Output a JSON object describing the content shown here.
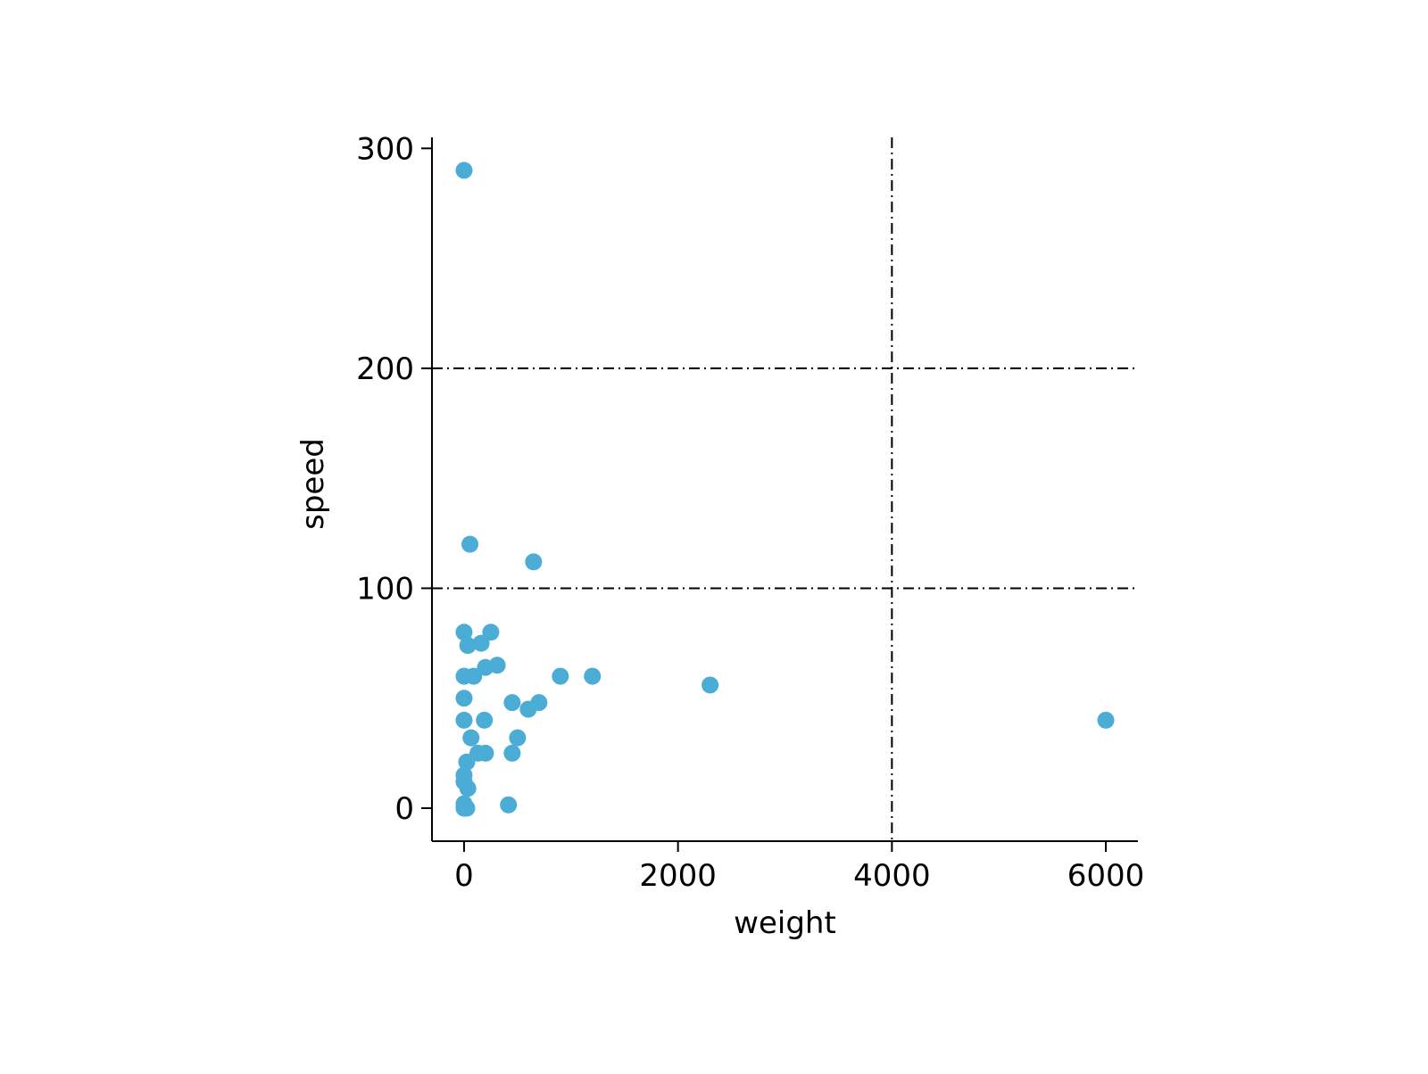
{
  "chart_data": {
    "type": "scatter",
    "title": "",
    "xlabel": "weight",
    "ylabel": "speed",
    "xlim": [
      -300,
      6300
    ],
    "ylim": [
      -15,
      305
    ],
    "x_ticks": [
      0,
      2000,
      4000,
      6000
    ],
    "x_tick_labels": [
      "0",
      "2000",
      "4000",
      "6000"
    ],
    "y_ticks": [
      0,
      100,
      200,
      300
    ],
    "y_tick_labels": [
      "0",
      "100",
      "200",
      "300"
    ],
    "grid": {
      "style": "dash-dot",
      "color": "#000000",
      "vertical_at": [
        4000
      ],
      "horizontal_at": [
        100,
        200
      ]
    },
    "marker_color": "#4BACD6",
    "points": [
      {
        "x": 0,
        "y": 290
      },
      {
        "x": 55,
        "y": 120
      },
      {
        "x": 650,
        "y": 112
      },
      {
        "x": 0,
        "y": 80
      },
      {
        "x": 250,
        "y": 80
      },
      {
        "x": 35,
        "y": 74
      },
      {
        "x": 160,
        "y": 75
      },
      {
        "x": 200,
        "y": 64
      },
      {
        "x": 310,
        "y": 65
      },
      {
        "x": 0,
        "y": 60
      },
      {
        "x": 90,
        "y": 60
      },
      {
        "x": 900,
        "y": 60
      },
      {
        "x": 1200,
        "y": 60
      },
      {
        "x": 2300,
        "y": 56
      },
      {
        "x": 0,
        "y": 50
      },
      {
        "x": 450,
        "y": 48
      },
      {
        "x": 700,
        "y": 48
      },
      {
        "x": 600,
        "y": 45
      },
      {
        "x": 0,
        "y": 40
      },
      {
        "x": 190,
        "y": 40
      },
      {
        "x": 6000,
        "y": 40
      },
      {
        "x": 65,
        "y": 32
      },
      {
        "x": 500,
        "y": 32
      },
      {
        "x": 130,
        "y": 25
      },
      {
        "x": 200,
        "y": 25
      },
      {
        "x": 450,
        "y": 25
      },
      {
        "x": 25,
        "y": 21
      },
      {
        "x": 0,
        "y": 15
      },
      {
        "x": 0,
        "y": 12
      },
      {
        "x": 35,
        "y": 9
      },
      {
        "x": 0,
        "y": 2
      },
      {
        "x": 415,
        "y": 1.5
      },
      {
        "x": 0,
        "y": 0
      },
      {
        "x": 25,
        "y": 0
      }
    ]
  }
}
